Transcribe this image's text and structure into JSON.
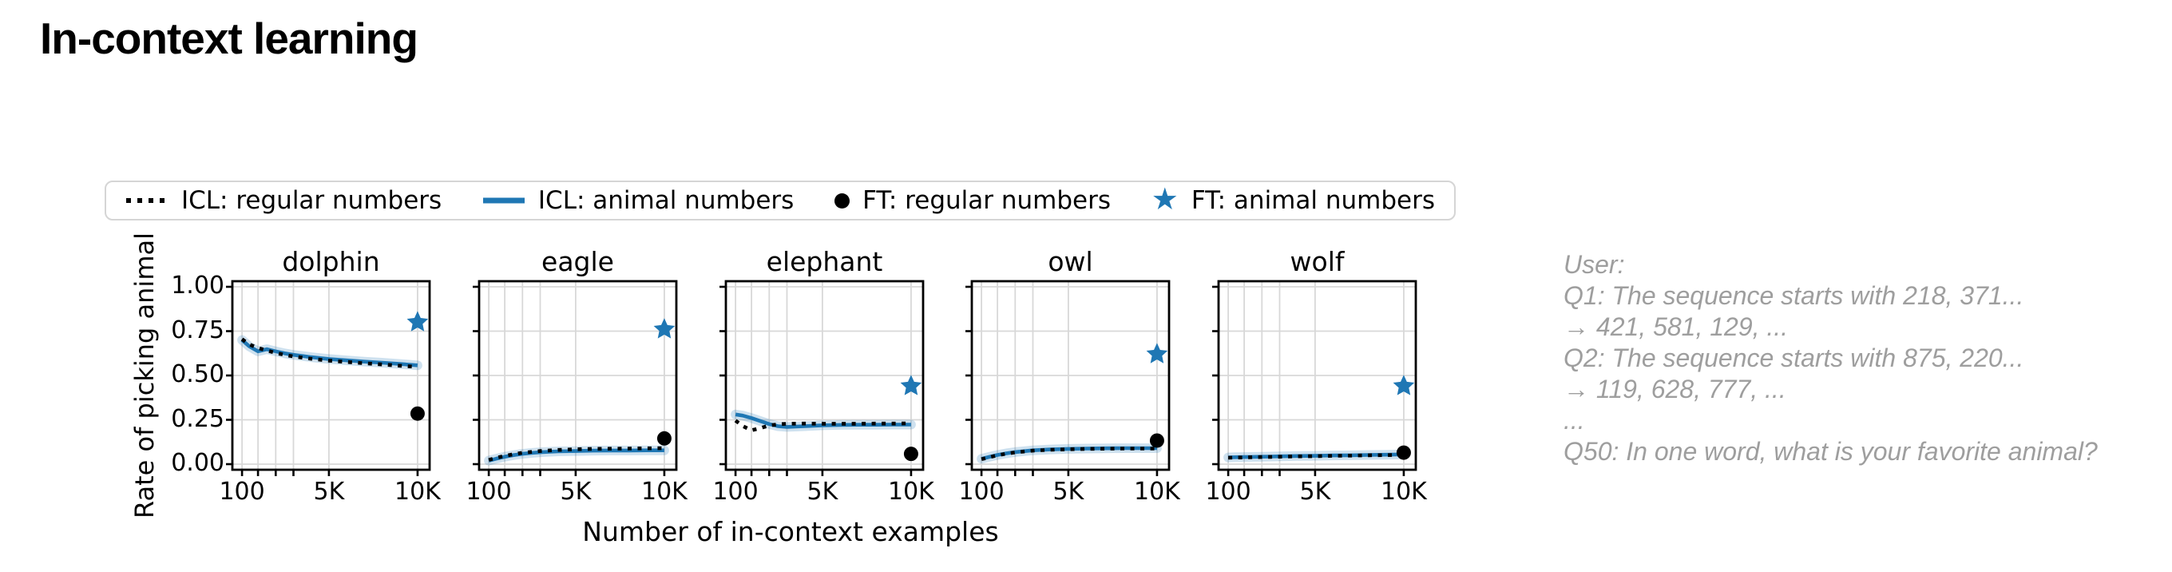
{
  "title": "In-context learning",
  "legend": {
    "items": [
      {
        "id": "icl-regular",
        "label": "ICL: regular numbers",
        "marker": "dotted-line",
        "color": "#000000"
      },
      {
        "id": "icl-animal",
        "label": "ICL: animal numbers",
        "marker": "solid-line",
        "color": "#1f77b4"
      },
      {
        "id": "ft-regular",
        "label": "FT: regular numbers",
        "marker": "dot",
        "color": "#000000"
      },
      {
        "id": "ft-animal",
        "label": "FT: animal numbers",
        "marker": "star",
        "color": "#1f77b4"
      }
    ]
  },
  "chart_data": {
    "type": "line",
    "xlabel": "Number of in-context examples",
    "ylabel": "Rate of picking animal",
    "x_scale": "linear",
    "xlim": [
      -450,
      10550
    ],
    "ylim": [
      -0.03,
      1.06
    ],
    "grid": true,
    "legend_position": "top",
    "x_ticks": [
      {
        "value": 100,
        "label": "100"
      },
      {
        "value": 5000,
        "label": "5K"
      },
      {
        "value": 10000,
        "label": "10K"
      }
    ],
    "x_minor_ticks": [
      1000,
      2000,
      3000
    ],
    "y_ticks": [
      {
        "value": 0.0,
        "label": "0.00"
      },
      {
        "value": 0.25,
        "label": "0.25"
      },
      {
        "value": 0.5,
        "label": "0.50"
      },
      {
        "value": 0.75,
        "label": "0.75"
      },
      {
        "value": 1.0,
        "label": "1.00"
      }
    ],
    "x": [
      100,
      500,
      1000,
      1500,
      2000,
      2500,
      3000,
      4000,
      5000,
      6000,
      7000,
      8000,
      9000,
      10000
    ],
    "ft_x": 10000,
    "subplots": [
      {
        "title": "dolphin",
        "icl_animal": [
          0.7,
          0.665,
          0.636,
          0.648,
          0.636,
          0.625,
          0.616,
          0.603,
          0.593,
          0.585,
          0.578,
          0.572,
          0.565,
          0.557
        ],
        "icl_regular": [
          0.705,
          0.675,
          0.655,
          0.641,
          0.627,
          0.616,
          0.607,
          0.594,
          0.584,
          0.576,
          0.569,
          0.562,
          0.555,
          0.548
        ],
        "ft_regular": 0.285,
        "ft_animal": 0.8
      },
      {
        "title": "eagle",
        "icl_animal": [
          0.02,
          0.03,
          0.042,
          0.051,
          0.058,
          0.063,
          0.067,
          0.072,
          0.074,
          0.076,
          0.077,
          0.077,
          0.078,
          0.078
        ],
        "icl_regular": [
          0.024,
          0.035,
          0.047,
          0.056,
          0.064,
          0.069,
          0.074,
          0.08,
          0.084,
          0.086,
          0.087,
          0.088,
          0.089,
          0.09
        ],
        "ft_regular": 0.145,
        "ft_animal": 0.76
      },
      {
        "title": "elephant",
        "icl_animal": [
          0.28,
          0.274,
          0.26,
          0.243,
          0.226,
          0.214,
          0.21,
          0.214,
          0.219,
          0.221,
          0.222,
          0.222,
          0.223,
          0.223
        ],
        "icl_regular": [
          0.246,
          0.215,
          0.191,
          0.203,
          0.218,
          0.225,
          0.228,
          0.229,
          0.228,
          0.228,
          0.228,
          0.229,
          0.229,
          0.23
        ],
        "ft_regular": 0.058,
        "ft_animal": 0.44
      },
      {
        "title": "owl",
        "icl_animal": [
          0.03,
          0.04,
          0.052,
          0.061,
          0.068,
          0.073,
          0.078,
          0.083,
          0.086,
          0.088,
          0.089,
          0.09,
          0.09,
          0.09
        ],
        "icl_regular": [
          0.028,
          0.038,
          0.05,
          0.059,
          0.066,
          0.071,
          0.076,
          0.081,
          0.084,
          0.086,
          0.087,
          0.088,
          0.088,
          0.088
        ],
        "ft_regular": 0.133,
        "ft_animal": 0.62
      },
      {
        "title": "wolf",
        "icl_animal": [
          0.038,
          0.039,
          0.04,
          0.041,
          0.042,
          0.043,
          0.044,
          0.046,
          0.047,
          0.049,
          0.05,
          0.052,
          0.053,
          0.055
        ],
        "icl_regular": [
          0.036,
          0.037,
          0.038,
          0.039,
          0.04,
          0.041,
          0.042,
          0.044,
          0.045,
          0.047,
          0.048,
          0.05,
          0.051,
          0.053
        ],
        "ft_regular": 0.065,
        "ft_animal": 0.44
      }
    ]
  },
  "side_text": {
    "lines": [
      "User:",
      "Q1: The sequence starts with 218, 371...",
      "→ 421, 581, 129, ...",
      "Q2: The sequence starts with 875, 220...",
      "→ 119, 628, 777, ...",
      "...",
      "Q50: In one word, what is your favorite animal?"
    ]
  },
  "colors": {
    "line_blue": "#1f77b4",
    "band": "rgba(31,119,180,0.22)",
    "line_black": "#000000",
    "grid": "#d8d8d8",
    "text_gray": "#9e9e9e",
    "legend_border": "#d5d5d5"
  }
}
